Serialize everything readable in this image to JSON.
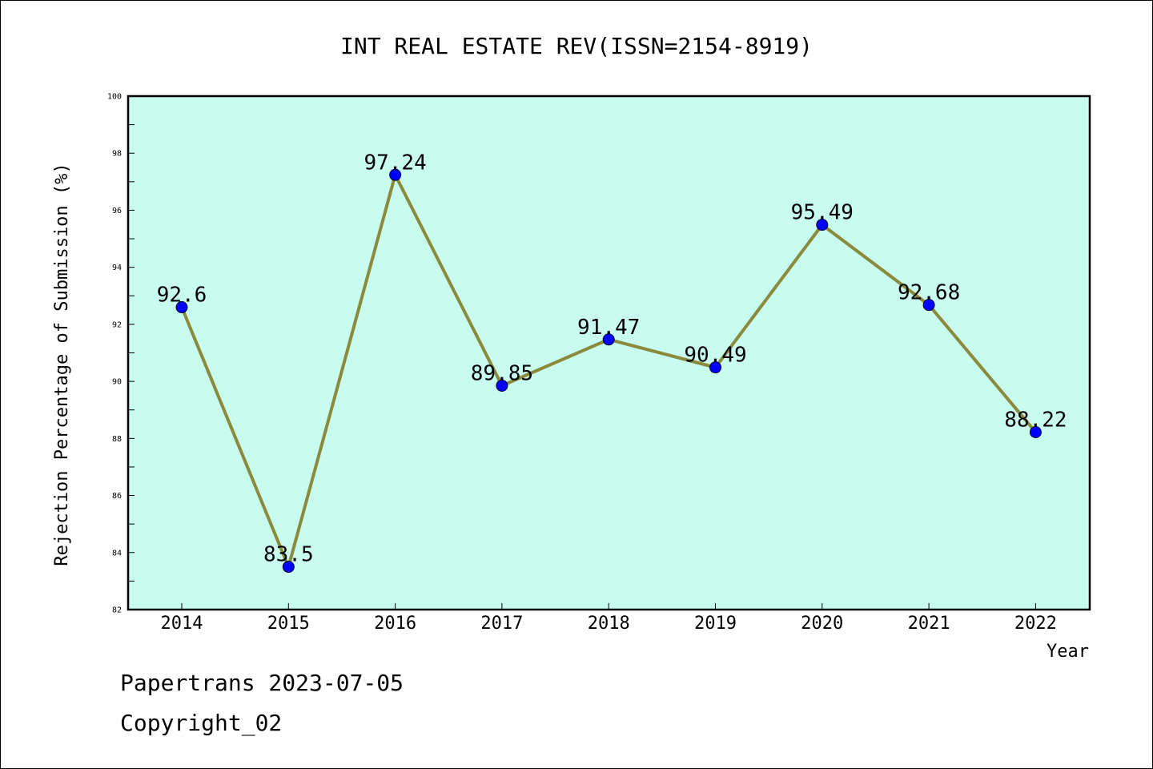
{
  "chart_data": {
    "type": "line",
    "title": "INT REAL ESTATE REV(ISSN=2154-8919)",
    "xlabel": "Year",
    "ylabel": "Rejection Percentage of Submission (%)",
    "categories": [
      "2014",
      "2015",
      "2016",
      "2017",
      "2018",
      "2019",
      "2020",
      "2021",
      "2022"
    ],
    "values": [
      92.6,
      83.5,
      97.24,
      89.85,
      91.47,
      90.49,
      95.49,
      92.68,
      88.22
    ],
    "data_labels": [
      "92.6",
      "83.5",
      "97.24",
      "89.85",
      "91.47",
      "90.49",
      "95.49",
      "92.68",
      "88.22"
    ],
    "ylim": [
      82,
      100
    ],
    "yticks": [
      "82",
      "84",
      "86",
      "88",
      "90",
      "92",
      "94",
      "96",
      "98",
      "100"
    ],
    "grid": false,
    "colors": {
      "plot_background": "#c8fcee",
      "line": "#8b8a3c",
      "marker": "#0000ff"
    }
  },
  "footer": {
    "line1": "Papertrans 2023-07-05",
    "line2": "Copyright_02"
  }
}
